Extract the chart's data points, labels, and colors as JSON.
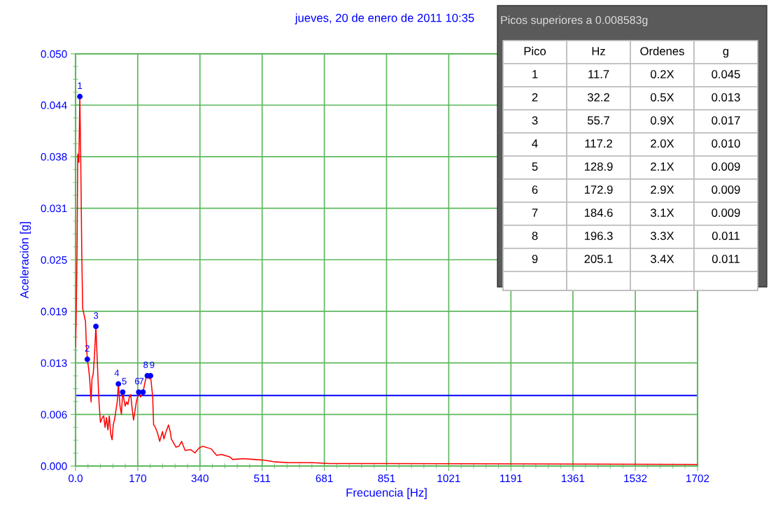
{
  "chart_data": {
    "type": "line",
    "title": "jueves, 20 de enero de 2011 10:35",
    "xlabel": "Frecuencia [Hz]",
    "ylabel": "Aceleración [g]",
    "xlim": [
      0,
      1702
    ],
    "ylim": [
      0,
      0.0502
    ],
    "xticks": [
      {
        "value": 0,
        "label": "0.0"
      },
      {
        "value": 170.2,
        "label": "170"
      },
      {
        "value": 340.4,
        "label": "340"
      },
      {
        "value": 510.6,
        "label": "511"
      },
      {
        "value": 680.8,
        "label": "681"
      },
      {
        "value": 851,
        "label": "851"
      },
      {
        "value": 1021.2,
        "label": "1021"
      },
      {
        "value": 1191.4,
        "label": "1191"
      },
      {
        "value": 1361,
        "label": "1361"
      },
      {
        "value": 1531.8,
        "label": "1532"
      },
      {
        "value": 1702,
        "label": "1702"
      }
    ],
    "yticks": [
      {
        "value": 0,
        "label": "0.000"
      },
      {
        "value": 0.00628,
        "label": "0.006"
      },
      {
        "value": 0.01256,
        "label": "0.013"
      },
      {
        "value": 0.01884,
        "label": "0.019"
      },
      {
        "value": 0.02512,
        "label": "0.025"
      },
      {
        "value": 0.0314,
        "label": "0.031"
      },
      {
        "value": 0.03768,
        "label": "0.038"
      },
      {
        "value": 0.04396,
        "label": "0.044"
      },
      {
        "value": 0.0502,
        "label": "0.050"
      }
    ],
    "grid": true,
    "legend": false,
    "ref_lines": [
      {
        "axis": "y",
        "value": 0.008583,
        "label": null,
        "color": "#0000ff"
      }
    ],
    "series": [
      {
        "color": "#ff0000",
        "marker": "none",
        "x": [
          0,
          2,
          4,
          6,
          9,
          11.7,
          14,
          17,
          19.5,
          27.2,
          29.1,
          32.2,
          35.4,
          38.7,
          42.5,
          45.0,
          48.3,
          51.4,
          55.7,
          61.7,
          64.2,
          68.0,
          73.2,
          77.0,
          80.8,
          84.7,
          88.5,
          92.3,
          96.2,
          100.0,
          103.1,
          107.7,
          110.2,
          114.0,
          117.2,
          121.6,
          125.5,
          128.9,
          135.7,
          139.5,
          143.3,
          147.1,
          151.0,
          154.8,
          158.6,
          162.5,
          166.3,
          172.9,
          177.8,
          181.6,
          184.6,
          191.9,
          196.3,
          202.1,
          205.1,
          211.1,
          213.6,
          216.1,
          221.3,
          225.1,
          230.3,
          234.1,
          237.9,
          241.8,
          245.6,
          249.4,
          254.4,
          259.0,
          262.1,
          268.6,
          274.9,
          282.6,
          290.2,
          299.8,
          315.1,
          326.6,
          338.1,
          347.7,
          370.7,
          386.0,
          399.4,
          422.4,
          430.1,
          458.8,
          489.5,
          518.2,
          546.9,
          585.2,
          650.4,
          694.4,
          842,
          1702
        ],
        "values": [
          0.0145,
          0.019,
          0.026,
          0.038,
          0.037,
          0.045,
          0.038,
          0.026,
          0.0192,
          0.0176,
          0.0153,
          0.013,
          0.012,
          0.0106,
          0.0078,
          0.0106,
          0.0112,
          0.0132,
          0.017,
          0.0103,
          0.0078,
          0.0053,
          0.0059,
          0.0061,
          0.0047,
          0.0059,
          0.0044,
          0.0061,
          0.0039,
          0.0032,
          0.005,
          0.0059,
          0.0067,
          0.0078,
          0.01,
          0.0073,
          0.0063,
          0.009,
          0.0073,
          0.0078,
          0.0075,
          0.0084,
          0.0087,
          0.007,
          0.0056,
          0.0067,
          0.0078,
          0.009,
          0.0084,
          0.0087,
          0.009,
          0.0106,
          0.011,
          0.0106,
          0.011,
          0.0084,
          0.005,
          0.0049,
          0.0044,
          0.0039,
          0.003,
          0.0036,
          0.0042,
          0.0033,
          0.0039,
          0.0044,
          0.005,
          0.0042,
          0.0033,
          0.0028,
          0.0023,
          0.0024,
          0.003,
          0.0019,
          0.002,
          0.0016,
          0.0022,
          0.0024,
          0.0021,
          0.0013,
          0.0014,
          0.0011,
          0.0008,
          0.0009,
          0.0008,
          0.0007,
          0.0005,
          0.0004,
          0.0004,
          0.0003,
          0.0003,
          0.0002
        ]
      },
      {
        "type": "scatter",
        "color": "#0000ff",
        "marker": "circle",
        "x": [
          11.7,
          32.2,
          55.7,
          117.2,
          128.9,
          172.9,
          184.6,
          196.3,
          205.1
        ],
        "values": [
          0.045,
          0.013,
          0.017,
          0.01,
          0.009,
          0.009,
          0.009,
          0.011,
          0.011
        ]
      }
    ],
    "annotations": [
      {
        "text": "1",
        "x": 11.7,
        "y": 0.045
      },
      {
        "text": "2",
        "x": 32.2,
        "y": 0.013
      },
      {
        "text": "3",
        "x": 55.7,
        "y": 0.017
      },
      {
        "text": "4",
        "x": 117.2,
        "y": 0.01
      },
      {
        "text": "5",
        "x": 128.9,
        "y": 0.009
      },
      {
        "text": "6",
        "x": 172.9,
        "y": 0.009
      },
      {
        "text": "7",
        "x": 184.6,
        "y": 0.009
      },
      {
        "text": "8",
        "x": 196.3,
        "y": 0.011
      },
      {
        "text": "9",
        "x": 205.1,
        "y": 0.011
      },
      "Picos superiores a 0.008583g",
      "Pico",
      "Hz",
      "Ordenes",
      "g",
      "1",
      "11.7",
      "0.2X",
      "0.045",
      "2",
      "32.2",
      "0.5X",
      "0.013",
      "3",
      "55.7",
      "0.9X",
      "0.017",
      "4",
      "117.2",
      "2.0X",
      "0.010",
      "5",
      "128.9",
      "2.1X",
      "0.009",
      "6",
      "172.9",
      "2.9X",
      "0.009",
      "7",
      "184.6",
      "3.1X",
      "0.009",
      "8",
      "196.3",
      "3.3X",
      "0.011",
      "9",
      "205.1",
      "3.4X",
      "0.011"
    ]
  }
}
